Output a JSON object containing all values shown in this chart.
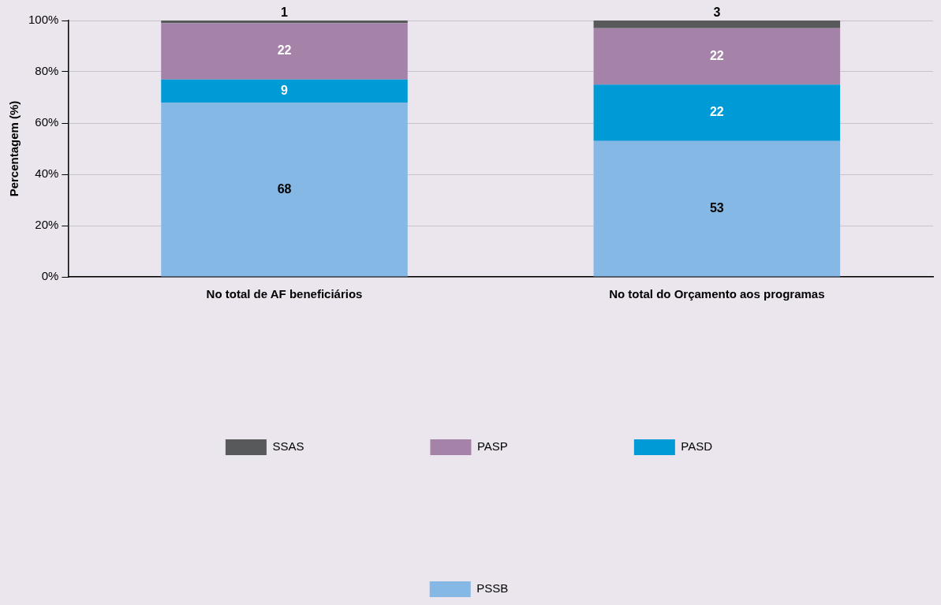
{
  "chart_data": {
    "type": "bar",
    "stacked": true,
    "categories": [
      "No total de AF beneficiários",
      "No total do Orçamento aos programas"
    ],
    "ylabel": "Percentagem (%)",
    "ylim": [
      0,
      100
    ],
    "yticks": [
      {
        "value": 0,
        "label": "0%"
      },
      {
        "value": 20,
        "label": "20%"
      },
      {
        "value": 40,
        "label": "40%"
      },
      {
        "value": 60,
        "label": "60%"
      },
      {
        "value": 80,
        "label": "80%"
      },
      {
        "value": 100,
        "label": "100%"
      }
    ],
    "grid": "y",
    "legend": "bottom",
    "data_labels": true,
    "series": [
      {
        "name": "PSSB",
        "color": "#85b8e5",
        "values": [
          68,
          53
        ]
      },
      {
        "name": "PASD",
        "color": "#009ad6",
        "values": [
          9,
          22
        ]
      },
      {
        "name": "PASP",
        "color": "#a583a8",
        "values": [
          22,
          22
        ]
      },
      {
        "name": "SSAS",
        "color": "#58595b",
        "values": [
          1,
          3
        ]
      }
    ]
  }
}
